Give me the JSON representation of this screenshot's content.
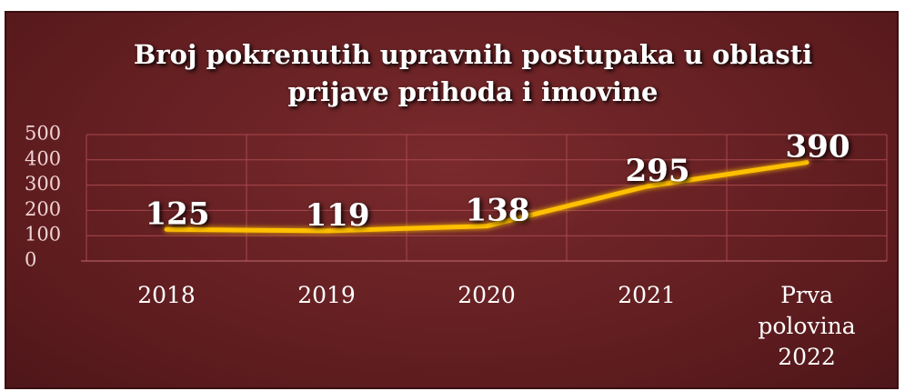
{
  "chart_data": {
    "type": "line",
    "title": "Broj pokrenutih upravnih postupaka u oblasti prijave prihoda i imovine",
    "categories": [
      "2018",
      "2019",
      "2020",
      "2021",
      "Prva polovina 2022"
    ],
    "values": [
      125,
      119,
      138,
      295,
      390
    ],
    "color": "#ffc000",
    "ylim": [
      0,
      500
    ],
    "yticks": [
      0,
      100,
      200,
      300,
      400,
      500
    ],
    "grid": true
  }
}
